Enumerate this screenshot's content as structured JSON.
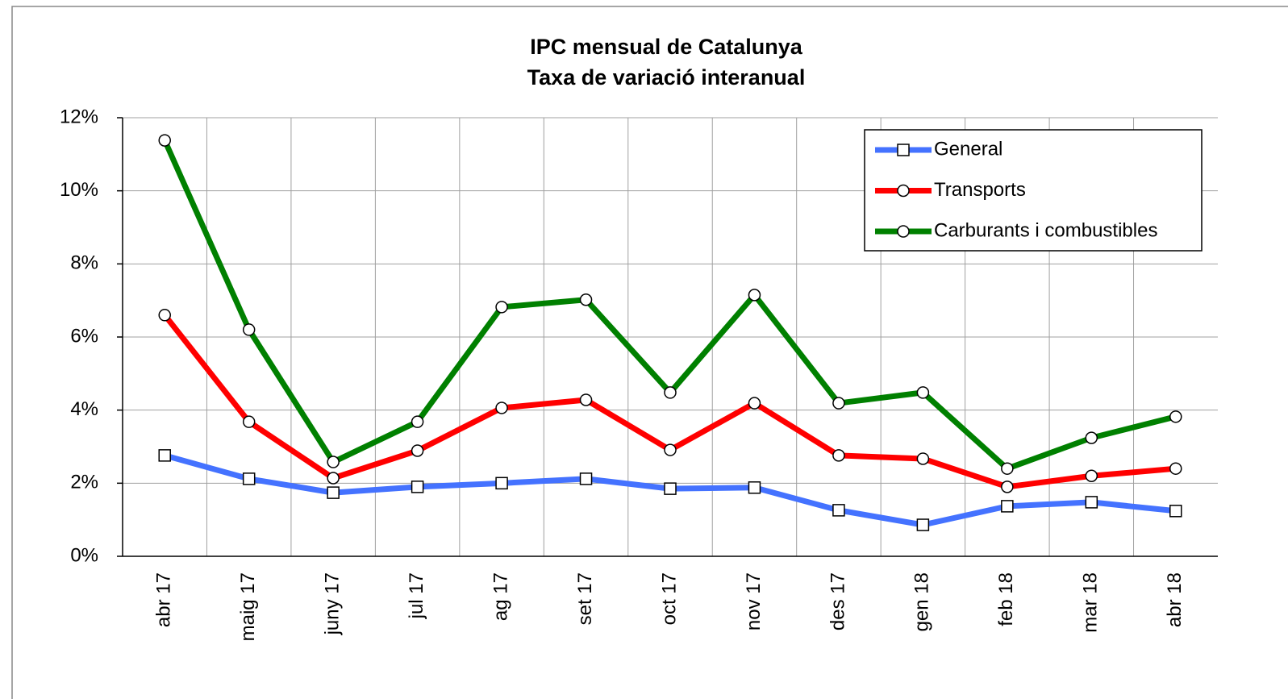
{
  "chart_data": {
    "type": "line",
    "title": "IPC mensual de Catalunya",
    "subtitle": "Taxa de variació interanual",
    "categories": [
      "abr 17",
      "maig 17",
      "juny 17",
      "jul 17",
      "ag 17",
      "set 17",
      "oct 17",
      "nov 17",
      "des 17",
      "gen 18",
      "feb 18",
      "mar 18",
      "abr 18"
    ],
    "series": [
      {
        "name": "General",
        "color": "#4472ff",
        "marker": "square",
        "values": [
          2.76,
          2.12,
          1.74,
          1.9,
          2.0,
          2.12,
          1.85,
          1.88,
          1.26,
          0.86,
          1.37,
          1.48,
          1.24
        ]
      },
      {
        "name": "Transports",
        "color": "#ff0000",
        "marker": "circle",
        "values": [
          6.6,
          3.68,
          2.14,
          2.89,
          4.06,
          4.28,
          2.91,
          4.19,
          2.76,
          2.67,
          1.9,
          2.2,
          2.4
        ]
      },
      {
        "name": "Carburants i combustibles",
        "color": "#008000",
        "marker": "circle",
        "values": [
          11.38,
          6.2,
          2.58,
          3.68,
          6.82,
          7.02,
          4.48,
          7.15,
          4.19,
          4.48,
          2.4,
          3.24,
          3.82
        ]
      }
    ],
    "ylim": [
      0,
      12
    ],
    "yticks": [
      {
        "value": 0,
        "label": "0%"
      },
      {
        "value": 2,
        "label": "2%"
      },
      {
        "value": 4,
        "label": "4%"
      },
      {
        "value": 6,
        "label": "6%"
      },
      {
        "value": 8,
        "label": "8%"
      },
      {
        "value": 10,
        "label": "10%"
      },
      {
        "value": 12,
        "label": "12%"
      }
    ],
    "grid": true,
    "legend": "top-right"
  }
}
